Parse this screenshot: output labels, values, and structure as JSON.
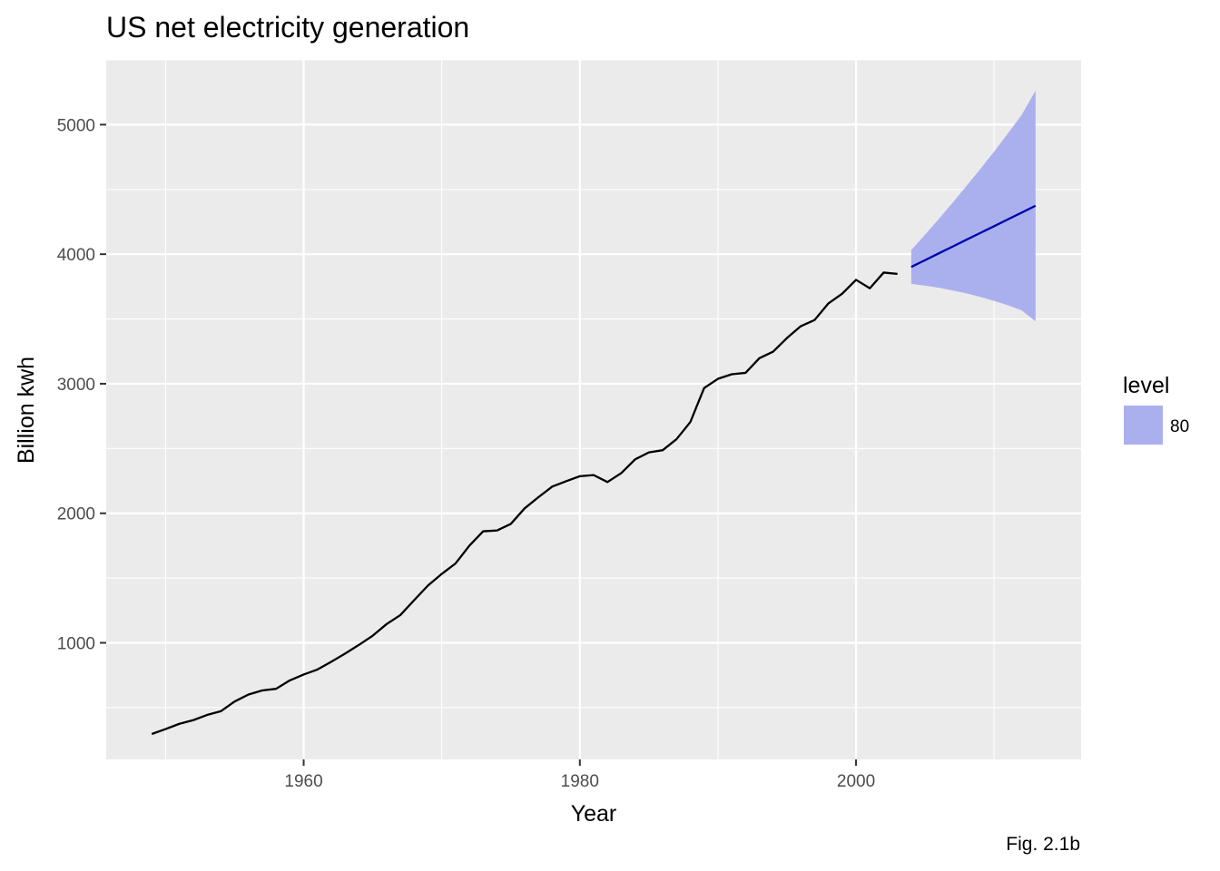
{
  "chart_data": {
    "type": "line",
    "title": "US net electricity generation",
    "xlabel": "Year",
    "ylabel": "Billion kwh",
    "caption": "Fig. 2.1b",
    "xlim": [
      1945.7,
      2016.3
    ],
    "ylim": [
      100,
      5500
    ],
    "x_ticks": [
      1960,
      1980,
      2000
    ],
    "x_tick_labels": [
      "1960",
      "1980",
      "2000"
    ],
    "y_ticks": [
      1000,
      2000,
      3000,
      4000,
      5000
    ],
    "y_tick_labels": [
      "1000",
      "2000",
      "3000",
      "4000",
      "5000"
    ],
    "grid": true,
    "legend": {
      "title": "level",
      "position": "right",
      "entries": [
        {
          "label": "80",
          "color": "#aab0ee"
        }
      ]
    },
    "colors": {
      "panel": "#ebebeb",
      "grid": "#ffffff",
      "history": "#000000",
      "forecast": "#0000aa",
      "interval": "#aab0ee"
    },
    "series": [
      {
        "role": "history",
        "x": [
          1949,
          1950,
          1951,
          1952,
          1953,
          1954,
          1955,
          1956,
          1957,
          1958,
          1959,
          1960,
          1961,
          1962,
          1963,
          1964,
          1965,
          1966,
          1967,
          1968,
          1969,
          1970,
          1971,
          1972,
          1973,
          1974,
          1975,
          1976,
          1977,
          1978,
          1979,
          1980,
          1981,
          1982,
          1983,
          1984,
          1985,
          1986,
          1987,
          1988,
          1989,
          1990,
          1991,
          1992,
          1993,
          1994,
          1995,
          1996,
          1997,
          1998,
          1999,
          2000,
          2001,
          2002,
          2003
        ],
        "y": [
          296,
          334,
          375,
          403,
          443,
          472,
          547,
          601,
          632,
          645,
          710,
          755,
          794,
          854,
          917,
          984,
          1055,
          1144,
          1214,
          1329,
          1442,
          1532,
          1613,
          1750,
          1861,
          1867,
          1918,
          2038,
          2124,
          2206,
          2247,
          2286,
          2295,
          2241,
          2310,
          2416,
          2470,
          2487,
          2572,
          2704,
          2967,
          3038,
          3073,
          3084,
          3197,
          3248,
          3353,
          3444,
          3492,
          3620,
          3695,
          3802,
          3737,
          3858,
          3848
        ]
      },
      {
        "role": "forecast",
        "name": "80",
        "x": [
          2004,
          2005,
          2006,
          2007,
          2008,
          2009,
          2010,
          2011,
          2012,
          2013
        ],
        "mean": [
          3902,
          3954,
          4007,
          4059,
          4112,
          4164,
          4216,
          4269,
          4321,
          4374
        ],
        "lower": [
          3772,
          3757,
          3741,
          3720,
          3697,
          3670,
          3640,
          3605,
          3566,
          3482
        ],
        "upper": [
          4032,
          4151,
          4273,
          4398,
          4527,
          4658,
          4792,
          4933,
          5076,
          5262
        ]
      }
    ]
  }
}
